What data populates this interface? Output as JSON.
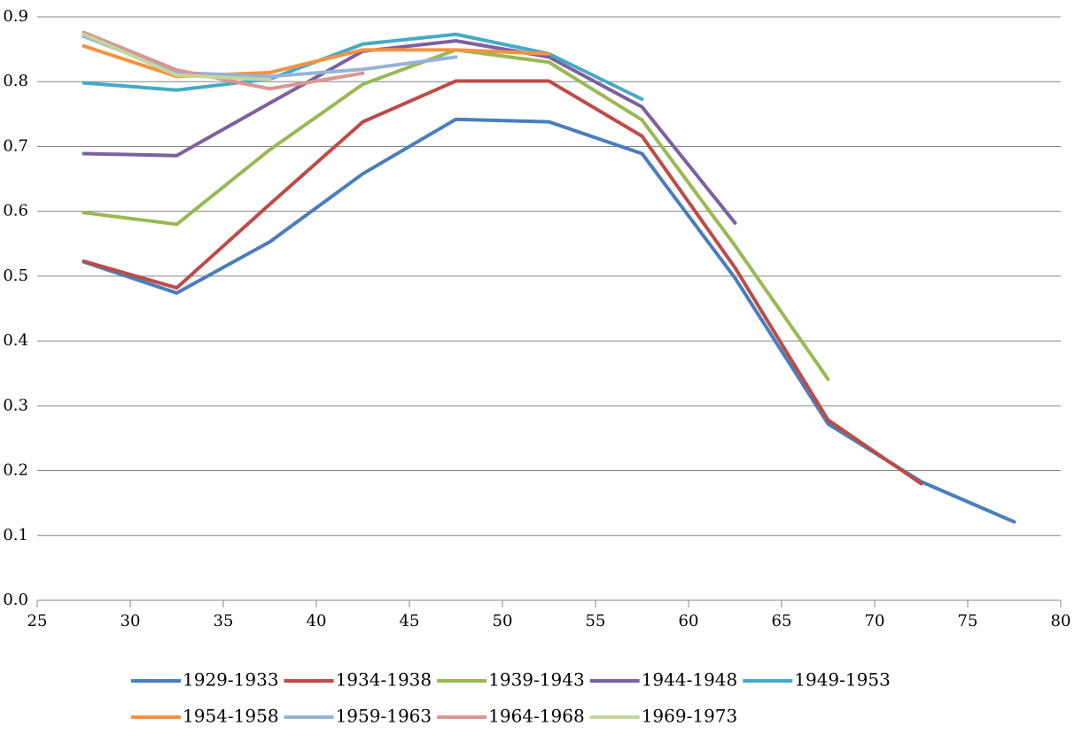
{
  "chart_data": {
    "type": "line",
    "x": [
      27.5,
      32.5,
      37.5,
      42.5,
      47.5,
      52.5,
      57.5,
      62.5,
      67.5,
      72.5,
      77.5
    ],
    "xlim": [
      25,
      80
    ],
    "xticks": [
      25,
      30,
      35,
      40,
      45,
      50,
      55,
      60,
      65,
      70,
      75,
      80
    ],
    "ylim": [
      0,
      0.9
    ],
    "yticks": [
      {
        "value": 0,
        "label": "0.0"
      },
      0.1,
      0.2,
      0.3,
      0.4,
      0.5,
      0.6,
      0.7,
      0.8,
      0.9
    ],
    "grid": true,
    "legend": "bottom",
    "series": [
      {
        "name": "1929-1933",
        "color": "#4a7ebb",
        "values": [
          0.522,
          0.474,
          0.553,
          0.658,
          0.742,
          0.738,
          0.689,
          0.497,
          0.272,
          0.183,
          0.121
        ]
      },
      {
        "name": "1934-1938",
        "color": "#be4b48",
        "values": [
          0.523,
          0.482,
          0.611,
          0.738,
          0.801,
          0.801,
          0.716,
          0.513,
          0.278,
          0.18,
          null
        ]
      },
      {
        "name": "1939-1943",
        "color": "#98b954",
        "values": [
          0.598,
          0.58,
          0.695,
          0.796,
          0.849,
          0.83,
          0.741,
          0.547,
          0.341,
          null,
          null
        ]
      },
      {
        "name": "1944-1948",
        "color": "#7d60a0",
        "values": [
          0.689,
          0.686,
          0.767,
          0.847,
          0.863,
          0.838,
          0.761,
          0.582,
          null,
          null,
          null
        ]
      },
      {
        "name": "1949-1953",
        "color": "#46aac5",
        "values": [
          0.798,
          0.787,
          0.804,
          0.858,
          0.873,
          0.843,
          0.773,
          null,
          null,
          null,
          null
        ]
      },
      {
        "name": "1954-1958",
        "color": "#f69240",
        "values": [
          0.855,
          0.808,
          0.814,
          0.849,
          0.849,
          0.843,
          null,
          null,
          null,
          null,
          null
        ]
      },
      {
        "name": "1959-1963",
        "color": "#95b3d7",
        "values": [
          0.87,
          0.814,
          0.808,
          0.819,
          0.838,
          null,
          null,
          null,
          null,
          null,
          null
        ]
      },
      {
        "name": "1964-1968",
        "color": "#d99694",
        "values": [
          0.876,
          0.818,
          0.789,
          0.813,
          null,
          null,
          null,
          null,
          null,
          null,
          null
        ]
      },
      {
        "name": "1969-1973",
        "color": "#c3d69b",
        "values": [
          0.873,
          0.81,
          0.803,
          null,
          null,
          null,
          null,
          null,
          null,
          null,
          null
        ]
      }
    ]
  }
}
